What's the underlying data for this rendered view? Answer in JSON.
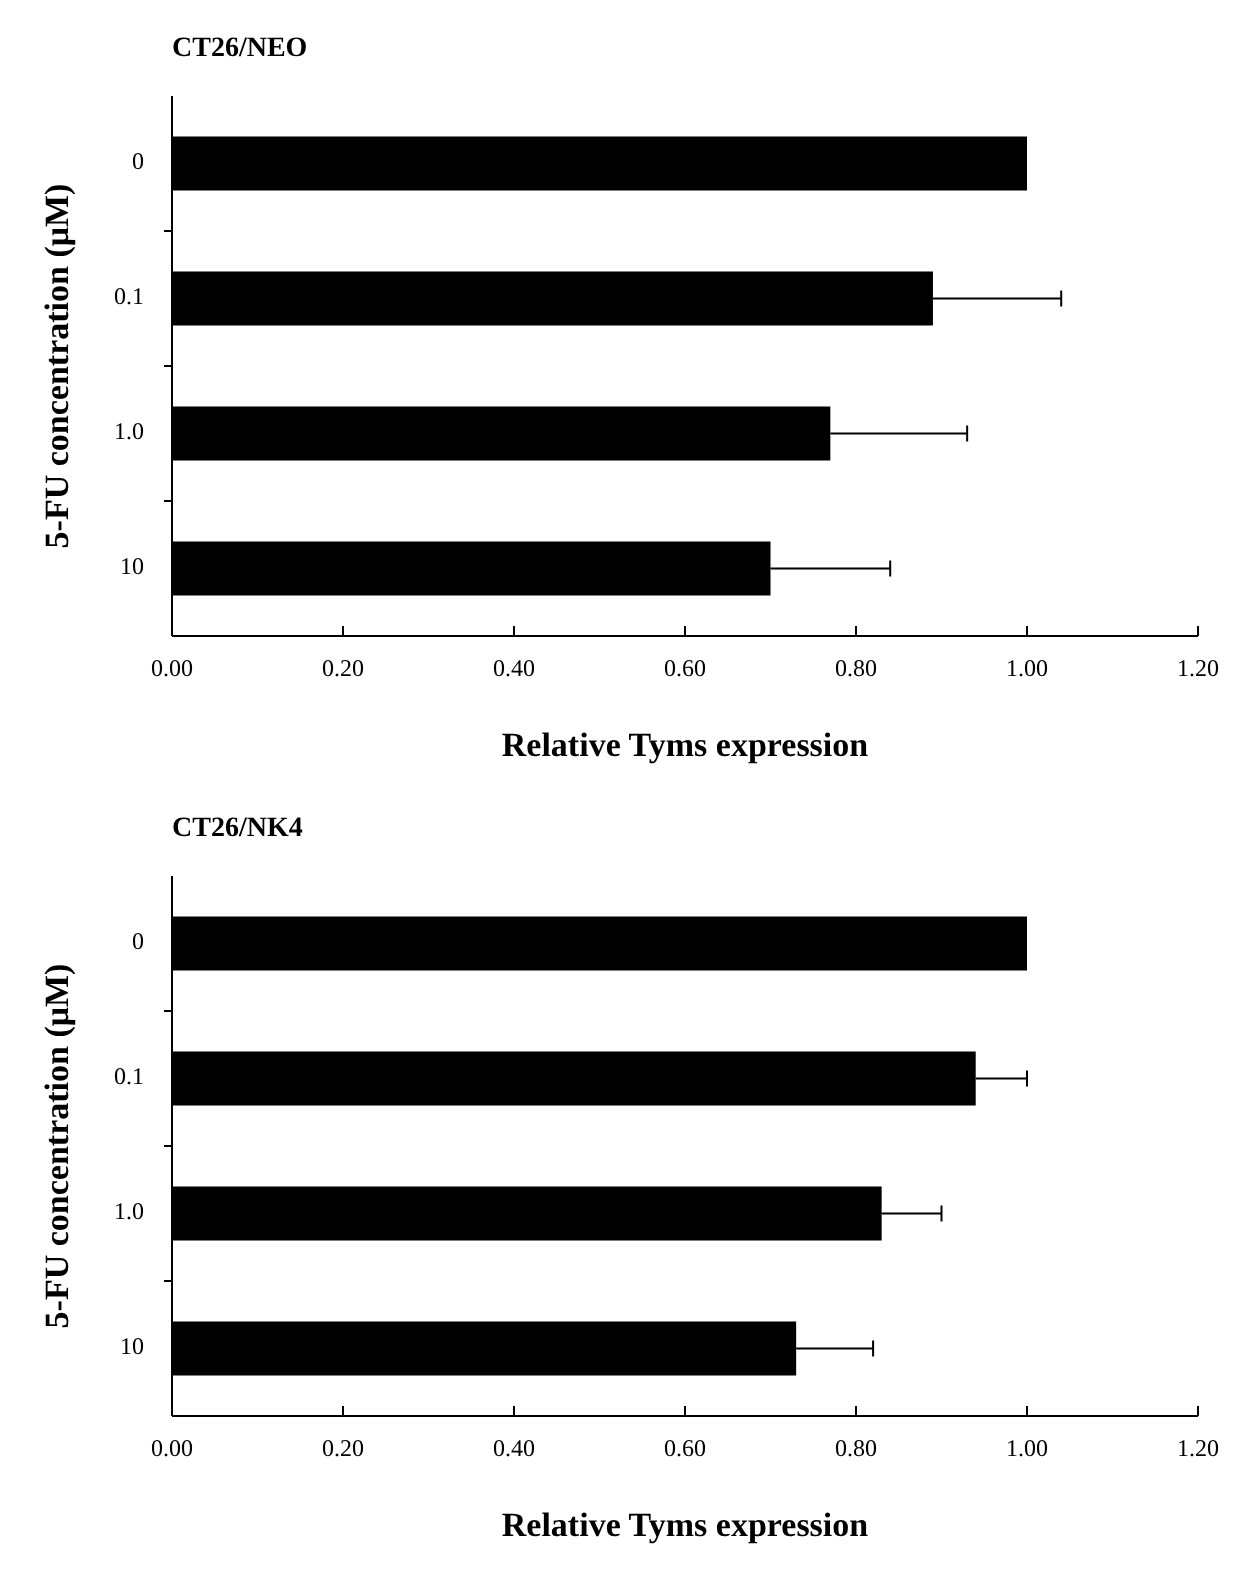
{
  "chart_data": [
    {
      "type": "bar",
      "orientation": "horizontal",
      "title": "CT26/NEO",
      "xlabel": "Relative Tyms expression",
      "ylabel": "5-FU concentration (μM)",
      "categories": [
        "0",
        "0.1",
        "1.0",
        "10"
      ],
      "values": [
        1.0,
        0.89,
        0.77,
        0.7
      ],
      "errors": [
        null,
        [
          0.89,
          1.04
        ],
        [
          0.77,
          0.93
        ],
        [
          0.7,
          0.84
        ]
      ],
      "color": "#000000",
      "xlim": [
        0,
        1.2
      ],
      "xticks": [
        {
          "value": 0,
          "label": "0.00"
        },
        {
          "value": 0.2,
          "label": "0.20"
        },
        {
          "value": 0.4,
          "label": "0.40"
        },
        {
          "value": 0.6,
          "label": "0.60"
        },
        {
          "value": 0.8,
          "label": "0.80"
        },
        {
          "value": 1.0,
          "label": "1.00"
        },
        {
          "value": 1.2,
          "label": "1.20"
        }
      ],
      "grid": false
    },
    {
      "type": "bar",
      "orientation": "horizontal",
      "title": "CT26/NK4",
      "xlabel": "Relative Tyms expression",
      "ylabel": "5-FU concentration (μM)",
      "categories": [
        "0",
        "0.1",
        "1.0",
        "10"
      ],
      "values": [
        1.0,
        0.94,
        0.83,
        0.73
      ],
      "errors": [
        null,
        [
          0.94,
          1.0
        ],
        [
          0.83,
          0.9
        ],
        [
          0.73,
          0.82
        ]
      ],
      "color": "#000000",
      "xlim": [
        0,
        1.2
      ],
      "xticks": [
        {
          "value": 0,
          "label": "0.00"
        },
        {
          "value": 0.2,
          "label": "0.20"
        },
        {
          "value": 0.4,
          "label": "0.40"
        },
        {
          "value": 0.6,
          "label": "0.60"
        },
        {
          "value": 0.8,
          "label": "0.80"
        },
        {
          "value": 1.0,
          "label": "1.00"
        },
        {
          "value": 1.2,
          "label": "1.20"
        }
      ],
      "grid": false
    }
  ]
}
